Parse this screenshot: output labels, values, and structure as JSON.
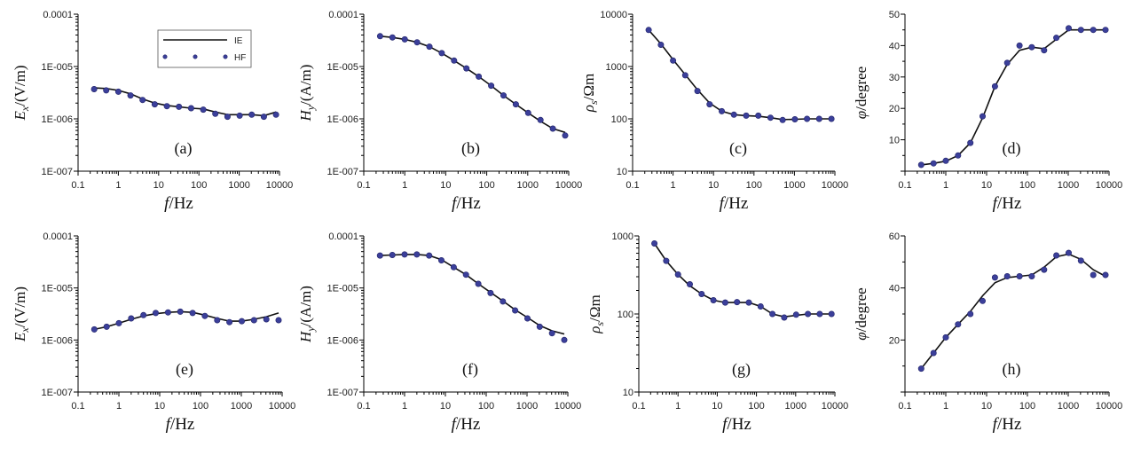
{
  "chart_data": [
    {
      "id": "a",
      "type": "line",
      "panel_label": "(a)",
      "xlabel_italic": "f",
      "xlabel_unit": "/Hz",
      "ylabel_italic": "E",
      "ylabel_sub": "x",
      "ylabel_unit": "/(V/m)",
      "yscale": "log",
      "ylim": [
        1e-07,
        0.0001
      ],
      "yticks": [
        "1E-007",
        "1E-006",
        "1E-005",
        "0.0001"
      ],
      "xticks": [
        "0.1",
        "1",
        "10",
        "100",
        "1000",
        "10000"
      ],
      "legend": {
        "position": "top-left",
        "entries": [
          "IE",
          "HF"
        ]
      },
      "series": [
        {
          "name": "IE",
          "style": "line",
          "x": [
            0.25,
            0.5,
            1,
            2,
            4,
            8,
            16,
            32,
            64,
            128,
            256,
            512,
            1024,
            2048,
            4096,
            8192
          ],
          "y": [
            3.9e-06,
            3.8e-06,
            3.5e-06,
            3e-06,
            2.4e-06,
            2e-06,
            1.8e-06,
            1.7e-06,
            1.6e-06,
            1.55e-06,
            1.35e-06,
            1.2e-06,
            1.2e-06,
            1.2e-06,
            1.15e-06,
            1.35e-06
          ]
        },
        {
          "name": "HF",
          "style": "markers",
          "x": [
            0.25,
            0.5,
            1,
            2,
            4,
            8,
            16,
            32,
            64,
            128,
            256,
            512,
            1024,
            2048,
            4096,
            8192
          ],
          "y": [
            3.7e-06,
            3.5e-06,
            3.3e-06,
            2.8e-06,
            2.3e-06,
            1.9e-06,
            1.75e-06,
            1.7e-06,
            1.6e-06,
            1.5e-06,
            1.25e-06,
            1.1e-06,
            1.15e-06,
            1.2e-06,
            1.1e-06,
            1.2e-06
          ]
        }
      ]
    },
    {
      "id": "b",
      "type": "line",
      "panel_label": "(b)",
      "xlabel_italic": "f",
      "xlabel_unit": "/Hz",
      "ylabel_italic": "H",
      "ylabel_sub": "y",
      "ylabel_unit": "/(A/m)",
      "yscale": "log",
      "ylim": [
        1e-07,
        0.0001
      ],
      "yticks": [
        "1E-007",
        "1E-006",
        "1E-005",
        "0.0001"
      ],
      "xticks": [
        "0.1",
        "1",
        "10",
        "100",
        "1000",
        "10000"
      ],
      "series": [
        {
          "name": "IE",
          "style": "line",
          "x": [
            0.25,
            0.5,
            1,
            2,
            4,
            8,
            16,
            32,
            64,
            128,
            256,
            512,
            1024,
            2048,
            4096,
            8192
          ],
          "y": [
            3.8e-05,
            3.6e-05,
            3.3e-05,
            2.9e-05,
            2.4e-05,
            1.8e-05,
            1.3e-05,
            9.2e-06,
            6.4e-06,
            4.3e-06,
            2.8e-06,
            1.9e-06,
            1.3e-06,
            9e-07,
            6.5e-07,
            5.5e-07
          ]
        },
        {
          "name": "HF",
          "style": "markers",
          "x": [
            0.25,
            0.5,
            1,
            2,
            4,
            8,
            16,
            32,
            64,
            128,
            256,
            512,
            1024,
            2048,
            4096,
            8192
          ],
          "y": [
            3.8e-05,
            3.6e-05,
            3.3e-05,
            2.9e-05,
            2.4e-05,
            1.8e-05,
            1.3e-05,
            9.2e-06,
            6.4e-06,
            4.3e-06,
            2.8e-06,
            1.9e-06,
            1.3e-06,
            9.5e-07,
            6.5e-07,
            4.8e-07
          ]
        }
      ]
    },
    {
      "id": "c",
      "type": "line",
      "panel_label": "(c)",
      "xlabel_italic": "f",
      "xlabel_unit": "/Hz",
      "ylabel_italic": "ρ",
      "ylabel_sub": "s",
      "ylabel_unit": "/Ωm",
      "yscale": "log",
      "ylim": [
        10,
        10000
      ],
      "yticks": [
        "10",
        "100",
        "1000",
        "10000"
      ],
      "xticks": [
        "0.1",
        "1",
        "10",
        "100",
        "1000",
        "10000"
      ],
      "series": [
        {
          "name": "IE",
          "style": "line",
          "x": [
            0.25,
            0.5,
            1,
            2,
            4,
            8,
            16,
            32,
            64,
            128,
            256,
            512,
            1024,
            2048,
            4096,
            8192
          ],
          "y": [
            5000,
            2700,
            1350,
            700,
            360,
            200,
            140,
            120,
            115,
            112,
            105,
            97,
            98,
            100,
            100,
            100
          ]
        },
        {
          "name": "HF",
          "style": "markers",
          "x": [
            0.25,
            0.5,
            1,
            2,
            4,
            8,
            16,
            32,
            64,
            128,
            256,
            512,
            1024,
            2048,
            4096,
            8192
          ],
          "y": [
            5000,
            2600,
            1300,
            680,
            340,
            190,
            140,
            120,
            115,
            115,
            105,
            95,
            98,
            100,
            100,
            100
          ]
        }
      ]
    },
    {
      "id": "d",
      "type": "line",
      "panel_label": "(d)",
      "xlabel_italic": "f",
      "xlabel_unit": "/Hz",
      "ylabel_italic": "φ",
      "ylabel_sub": "",
      "ylabel_unit": "/degree",
      "yscale": "linear",
      "ylim": [
        0,
        50
      ],
      "yticks": [
        "10",
        "20",
        "30",
        "40",
        "50"
      ],
      "xticks": [
        "0.1",
        "1",
        "10",
        "100",
        "1000",
        "10000"
      ],
      "series": [
        {
          "name": "IE",
          "style": "line",
          "x": [
            0.25,
            0.5,
            1,
            2,
            4,
            8,
            16,
            32,
            64,
            128,
            256,
            512,
            1024,
            2048,
            4096,
            8192
          ],
          "y": [
            2,
            2.5,
            3.2,
            5,
            9,
            17,
            27,
            34,
            38.5,
            39.5,
            39,
            42,
            45,
            45,
            45,
            45
          ]
        },
        {
          "name": "HF",
          "style": "markers",
          "x": [
            0.25,
            0.5,
            1,
            2,
            4,
            8,
            16,
            32,
            64,
            128,
            256,
            512,
            1024,
            2048,
            4096,
            8192
          ],
          "y": [
            2,
            2.5,
            3.3,
            5,
            9,
            17.5,
            27,
            34.5,
            40,
            39.5,
            38.5,
            42.5,
            45.5,
            45,
            45,
            45
          ]
        }
      ]
    },
    {
      "id": "e",
      "type": "line",
      "panel_label": "(e)",
      "xlabel_italic": "f",
      "xlabel_unit": "/Hz",
      "ylabel_italic": "E",
      "ylabel_sub": "x",
      "ylabel_unit": "/(V/m)",
      "yscale": "log",
      "ylim": [
        1e-07,
        0.0001
      ],
      "yticks": [
        "1E-007",
        "1E-006",
        "1E-005",
        "0.0001"
      ],
      "xticks": [
        "0.1",
        "1",
        "10",
        "100",
        "1000",
        "10000"
      ],
      "series": [
        {
          "name": "IE",
          "style": "line",
          "x": [
            0.25,
            0.5,
            1,
            2,
            4,
            8,
            16,
            32,
            64,
            128,
            256,
            512,
            1024,
            2048,
            4096,
            8192
          ],
          "y": [
            1.6e-06,
            1.8e-06,
            2.1e-06,
            2.5e-06,
            2.9e-06,
            3.2e-06,
            3.4e-06,
            3.5e-06,
            3.4e-06,
            3e-06,
            2.6e-06,
            2.3e-06,
            2.3e-06,
            2.5e-06,
            2.8e-06,
            3.3e-06
          ]
        },
        {
          "name": "HF",
          "style": "markers",
          "x": [
            0.25,
            0.5,
            1,
            2,
            4,
            8,
            16,
            32,
            64,
            128,
            256,
            512,
            1024,
            2048,
            4096,
            8192
          ],
          "y": [
            1.6e-06,
            1.8e-06,
            2.1e-06,
            2.6e-06,
            3e-06,
            3.3e-06,
            3.4e-06,
            3.5e-06,
            3.3e-06,
            2.9e-06,
            2.4e-06,
            2.2e-06,
            2.3e-06,
            2.4e-06,
            2.5e-06,
            2.4e-06
          ]
        }
      ]
    },
    {
      "id": "f",
      "type": "line",
      "panel_label": "(f)",
      "xlabel_italic": "f",
      "xlabel_unit": "/Hz",
      "ylabel_italic": "H",
      "ylabel_sub": "y",
      "ylabel_unit": "/(A/m)",
      "yscale": "log",
      "ylim": [
        1e-07,
        0.0001
      ],
      "yticks": [
        "1E-007",
        "1E-006",
        "1E-005",
        "0.0001"
      ],
      "xticks": [
        "0.1",
        "1",
        "10",
        "100",
        "1000",
        "10000"
      ],
      "series": [
        {
          "name": "IE",
          "style": "line",
          "x": [
            0.25,
            0.5,
            1,
            2,
            4,
            8,
            16,
            32,
            64,
            128,
            256,
            512,
            1024,
            2048,
            4096,
            8192
          ],
          "y": [
            4.2e-05,
            4.3e-05,
            4.4e-05,
            4.4e-05,
            4.2e-05,
            3.5e-05,
            2.5e-05,
            1.8e-05,
            1.2e-05,
            8.2e-06,
            5.6e-06,
            3.8e-06,
            2.7e-06,
            1.9e-06,
            1.5e-06,
            1.3e-06
          ]
        },
        {
          "name": "HF",
          "style": "markers",
          "x": [
            0.25,
            0.5,
            1,
            2,
            4,
            8,
            16,
            32,
            64,
            128,
            256,
            512,
            1024,
            2048,
            4096,
            8192
          ],
          "y": [
            4.2e-05,
            4.3e-05,
            4.4e-05,
            4.4e-05,
            4.2e-05,
            3.4e-05,
            2.5e-05,
            1.8e-05,
            1.2e-05,
            8e-06,
            5.5e-06,
            3.7e-06,
            2.6e-06,
            1.8e-06,
            1.35e-06,
            1e-06
          ]
        }
      ]
    },
    {
      "id": "g",
      "type": "line",
      "panel_label": "(g)",
      "xlabel_italic": "f",
      "xlabel_unit": "/Hz",
      "ylabel_italic": "ρ",
      "ylabel_sub": "s",
      "ylabel_unit": "/Ωm",
      "yscale": "log",
      "ylim": [
        10,
        1000
      ],
      "yticks": [
        "10",
        "100",
        "1000"
      ],
      "xticks": [
        "0.1",
        "1",
        "10",
        "100",
        "1000",
        "10000"
      ],
      "series": [
        {
          "name": "IE",
          "style": "line",
          "x": [
            0.25,
            0.5,
            1,
            2,
            4,
            8,
            16,
            32,
            64,
            128,
            256,
            512,
            1024,
            2048,
            4096,
            8192
          ],
          "y": [
            800,
            480,
            320,
            230,
            180,
            150,
            140,
            140,
            140,
            125,
            100,
            92,
            96,
            100,
            100,
            100
          ]
        },
        {
          "name": "HF",
          "style": "markers",
          "x": [
            0.25,
            0.5,
            1,
            2,
            4,
            8,
            16,
            32,
            64,
            128,
            256,
            512,
            1024,
            2048,
            4096,
            8192
          ],
          "y": [
            800,
            480,
            320,
            240,
            180,
            150,
            140,
            142,
            140,
            125,
            100,
            90,
            98,
            100,
            100,
            100
          ]
        }
      ]
    },
    {
      "id": "h",
      "type": "line",
      "panel_label": "(h)",
      "xlabel_italic": "f",
      "xlabel_unit": "/Hz",
      "ylabel_italic": "φ",
      "ylabel_sub": "",
      "ylabel_unit": "/degree",
      "yscale": "linear",
      "ylim": [
        0,
        60
      ],
      "yticks": [
        "20",
        "40",
        "60"
      ],
      "xticks": [
        "0.1",
        "1",
        "10",
        "100",
        "1000",
        "10000"
      ],
      "series": [
        {
          "name": "IE",
          "style": "line",
          "x": [
            0.25,
            0.5,
            1,
            2,
            4,
            8,
            16,
            32,
            64,
            128,
            256,
            512,
            1024,
            2048,
            4096,
            8192
          ],
          "y": [
            9,
            15,
            21,
            26,
            31,
            37,
            42,
            44,
            44.5,
            45,
            48,
            52,
            53,
            51,
            47,
            44.5
          ]
        },
        {
          "name": "HF",
          "style": "markers",
          "x": [
            0.25,
            0.5,
            1,
            2,
            4,
            8,
            16,
            32,
            64,
            128,
            256,
            512,
            1024,
            2048,
            4096,
            8192
          ],
          "y": [
            9,
            15,
            21,
            26,
            30,
            35,
            44,
            44.5,
            44.5,
            44.5,
            47,
            52.5,
            53.5,
            50.5,
            45,
            45
          ]
        }
      ]
    }
  ]
}
